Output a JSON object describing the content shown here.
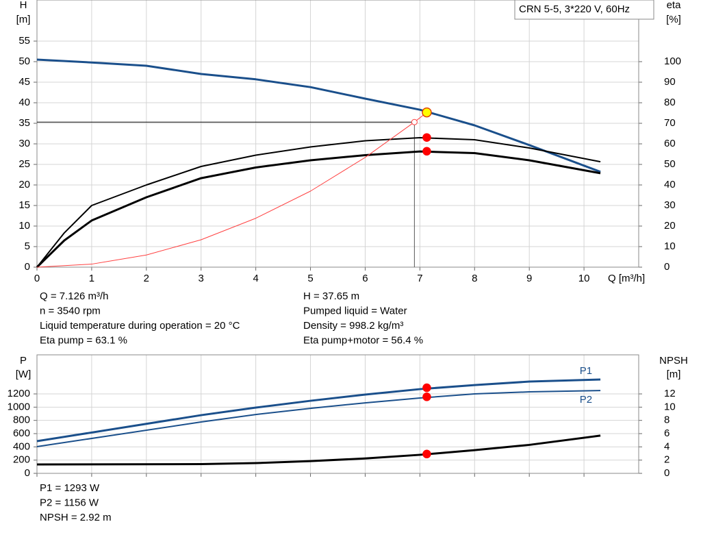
{
  "chart_data": [
    {
      "type": "line",
      "y_label": "H",
      "y_unit": "[m]",
      "y2_label": "eta",
      "y2_unit": "[%]",
      "x_label": "Q [m³/h]",
      "legend_text": "CRN 5-5, 3*220 V, 60Hz",
      "xlim": [
        0,
        11
      ],
      "xticks": [
        0,
        1,
        2,
        3,
        4,
        5,
        6,
        7,
        8,
        9,
        10
      ],
      "ylim": [
        0,
        65
      ],
      "yticks": [
        0,
        5,
        10,
        15,
        20,
        25,
        30,
        35,
        40,
        45,
        50,
        55
      ],
      "y2lim": [
        0,
        130
      ],
      "y2ticks": [
        0,
        10,
        20,
        30,
        40,
        50,
        60,
        70,
        80,
        90,
        100
      ],
      "grid": true,
      "series": [
        {
          "color": "#1a4f8b",
          "width": 3,
          "x": [
            0,
            1,
            2,
            3,
            4,
            5,
            6,
            7,
            8,
            9,
            10.3
          ],
          "values": [
            50.5,
            49.8,
            49,
            47,
            45.7,
            43.8,
            41,
            38.3,
            34.5,
            29.7,
            23.2
          ]
        },
        {
          "color": "#000000",
          "width": 2,
          "axis": "y2",
          "x": [
            0,
            0.5,
            1,
            2,
            3,
            4,
            5,
            6,
            7,
            8,
            9,
            10.3
          ],
          "values": [
            0,
            16.7,
            30,
            40,
            49,
            54.5,
            58.5,
            61.5,
            63,
            62,
            58,
            51.3
          ]
        },
        {
          "color": "#000000",
          "width": 3,
          "axis": "y2",
          "x": [
            0,
            0.5,
            1,
            2,
            3,
            4,
            5,
            6,
            7,
            8,
            9,
            10.3
          ],
          "values": [
            0,
            13,
            22.7,
            34,
            43.3,
            48.5,
            52,
            54.5,
            56.3,
            55.5,
            52,
            45.7
          ]
        },
        {
          "color": "#ff4040",
          "width": 1,
          "x": [
            0,
            1,
            2,
            3,
            4,
            5,
            6,
            6.9
          ],
          "values": [
            0,
            0.74,
            2.96,
            6.67,
            11.9,
            18.5,
            26.7,
            35.3
          ]
        }
      ],
      "reference_point": {
        "x": 6.9,
        "y": 35.3
      },
      "markers": [
        {
          "x": 7.126,
          "y": 37.65,
          "color": "#ffff00"
        },
        {
          "x": 7.126,
          "y": 63.1,
          "axis": "y2",
          "color": "#ff0000"
        },
        {
          "x": 7.126,
          "y": 56.4,
          "axis": "y2",
          "color": "#ff0000"
        }
      ],
      "info": [
        [
          "Q = 7.126 m³/h",
          "n = 3540 rpm",
          "Liquid temperature during operation = 20 °C",
          "Eta pump = 63.1 %"
        ],
        [
          "H = 37.65 m",
          "Pumped liquid = Water",
          "Density = 998.2 kg/m³",
          "Eta pump+motor = 56.4 %"
        ]
      ]
    },
    {
      "type": "line",
      "y_label": "P",
      "y_unit": "[W]",
      "y2_label": "NPSH",
      "y2_unit": "[m]",
      "xlim": [
        0,
        11
      ],
      "xticks": [
        0,
        1,
        2,
        3,
        4,
        5,
        6,
        7,
        8,
        9,
        10
      ],
      "xtick_labels": false,
      "ylim": [
        0,
        1790
      ],
      "yticks": [
        0,
        200,
        400,
        600,
        800,
        1000,
        1200
      ],
      "y2lim": [
        0,
        17.9
      ],
      "y2ticks": [
        0,
        2,
        4,
        6,
        8,
        10,
        12
      ],
      "grid": true,
      "series": [
        {
          "name": "P1",
          "color": "#1a4f8b",
          "width": 3,
          "x": [
            0,
            3,
            4,
            5,
            6,
            7,
            8,
            9,
            10.3
          ],
          "values": [
            486,
            879,
            993,
            1096,
            1190,
            1272,
            1334,
            1386,
            1417
          ]
        },
        {
          "name": "P2",
          "color": "#1a4f8b",
          "width": 2,
          "x": [
            0,
            3,
            4,
            5,
            6,
            7,
            8,
            9,
            10.3
          ],
          "values": [
            403,
            776,
            889,
            982,
            1065,
            1138,
            1200,
            1231,
            1251
          ]
        },
        {
          "color": "#000000",
          "width": 3,
          "axis": "y2",
          "x": [
            0,
            3,
            4,
            5,
            6,
            7,
            8,
            9,
            10.3
          ],
          "values": [
            1.34,
            1.4,
            1.55,
            1.85,
            2.25,
            2.8,
            3.5,
            4.3,
            5.7
          ]
        }
      ],
      "markers": [
        {
          "x": 7.126,
          "y": 1293,
          "color": "#ff0000"
        },
        {
          "x": 7.126,
          "y": 1156,
          "color": "#ff0000"
        },
        {
          "x": 7.126,
          "y": 2.92,
          "axis": "y2",
          "color": "#ff0000"
        }
      ],
      "info": [
        [
          "P1 = 1293 W",
          "P2 = 1156 W",
          "NPSH = 2.92 m"
        ]
      ]
    }
  ]
}
